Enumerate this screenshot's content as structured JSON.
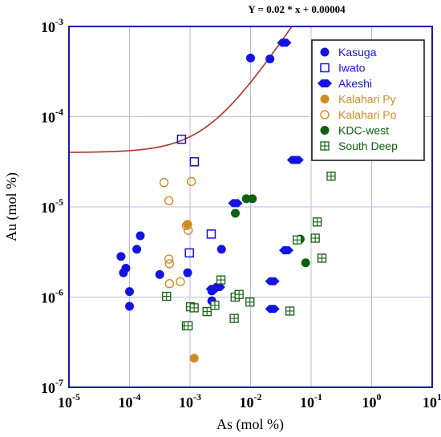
{
  "chart_data": {
    "type": "scatter",
    "equation": "Y = 0.02 * x + 0.00004",
    "xlabel": "As (mol %)",
    "ylabel": "Au (mol %)",
    "x_scale": "log",
    "y_scale": "log",
    "xlim": [
      1e-05,
      10
    ],
    "ylim": [
      1e-07,
      0.001
    ],
    "x_ticks": [
      {
        "base": "10",
        "exp": "-5"
      },
      {
        "base": "10",
        "exp": "-4"
      },
      {
        "base": "10",
        "exp": "-3"
      },
      {
        "base": "10",
        "exp": "-2"
      },
      {
        "base": "10",
        "exp": "-1"
      },
      {
        "base": "10",
        "exp": "0"
      },
      {
        "base": "10",
        "exp": "1"
      }
    ],
    "y_ticks": [
      {
        "base": "10",
        "exp": "-7"
      },
      {
        "base": "10",
        "exp": "-6"
      },
      {
        "base": "10",
        "exp": "-5"
      },
      {
        "base": "10",
        "exp": "-4"
      },
      {
        "base": "10",
        "exp": "-3"
      }
    ],
    "grid": true,
    "legend_position": "top-right",
    "line": {
      "slope": 0.02,
      "intercept": 4e-05,
      "color": "#b0302a"
    },
    "series": [
      {
        "name": "Kasuga",
        "marker": "filled-circle",
        "color": "#1414e0",
        "points": [
          [
            7.24e-05,
            2.82e-06
          ],
          [
            7.94e-05,
            1.86e-06
          ],
          [
            8.71e-05,
            2.09e-06
          ],
          [
            0.0001,
            1.15e-06
          ],
          [
            0.0001,
            7.9e-07
          ],
          [
            0.000132,
            3.39e-06
          ],
          [
            0.000151,
            4.79e-06
          ],
          [
            0.000316,
            1.78e-06
          ],
          [
            0.000912,
            1.86e-06
          ],
          [
            0.00229,
            9.1e-07
          ],
          [
            0.00229,
            1.17e-06
          ],
          [
            0.00331,
            3.39e-06
          ],
          [
            0.01,
            0.000447
          ],
          [
            0.0209,
            0.000437
          ]
        ]
      },
      {
        "name": "Iwato",
        "marker": "open-square",
        "color": "#1414e0",
        "points": [
          [
            0.000724,
            5.62e-05
          ],
          [
            0.000977,
            3.09e-06
          ],
          [
            0.00118,
            3.16e-05
          ],
          [
            0.00224,
            5e-06
          ]
        ]
      },
      {
        "name": "Akeshi",
        "marker": "filled-hexagon",
        "color": "#1414e0",
        "points": [
          [
            0.0024,
            1.23e-06
          ],
          [
            0.0029,
            1.29e-06
          ],
          [
            0.0056,
            1.1e-05
          ],
          [
            0.0229,
            1.5e-06
          ],
          [
            0.0229,
            7.4e-07
          ],
          [
            0.036,
            0.000661
          ],
          [
            0.0525,
            3.31e-05
          ],
          [
            0.0575,
            3.31e-05
          ],
          [
            0.0389,
            3.3e-06
          ]
        ]
      },
      {
        "name": "Kalahari Py",
        "marker": "filled-circle",
        "color": "#d08b20",
        "points": [
          [
            0.000912,
            6.4e-06
          ],
          [
            0.00117,
            2.1e-07
          ]
        ]
      },
      {
        "name": "Kalahari Po",
        "marker": "open-circle",
        "color": "#d08b20",
        "points": [
          [
            0.000372,
            1.86e-05
          ],
          [
            0.000447,
            1.17e-05
          ],
          [
            0.000447,
            2.64e-06
          ],
          [
            0.000457,
            2.34e-06
          ],
          [
            0.000457,
            1.41e-06
          ],
          [
            0.000692,
            1.48e-06
          ],
          [
            0.000871,
            6.2e-06
          ],
          [
            0.000933,
            5.5e-06
          ],
          [
            0.00105,
            1.91e-05
          ]
        ]
      },
      {
        "name": "KDC-west",
        "marker": "filled-circle",
        "color": "#106010",
        "points": [
          [
            0.0056,
            8.5e-06
          ],
          [
            0.0085,
            1.23e-05
          ],
          [
            0.0107,
            1.23e-05
          ],
          [
            0.0661,
            4.4e-06
          ],
          [
            0.0813,
            2.4e-06
          ]
        ]
      },
      {
        "name": "South Deep",
        "marker": "boxed-plus",
        "color": "#106010",
        "points": [
          [
            0.00041,
            1.02e-06
          ],
          [
            0.00087,
            4.8e-07
          ],
          [
            0.00093,
            4.8e-07
          ],
          [
            0.00102,
            7.8e-07
          ],
          [
            0.00117,
            7.6e-07
          ],
          [
            0.00191,
            6.9e-07
          ],
          [
            0.00257,
            8.1e-07
          ],
          [
            0.00324,
            1.55e-06
          ],
          [
            0.00537,
            5.8e-07
          ],
          [
            0.00556,
            1e-06
          ],
          [
            0.00646,
            1.07e-06
          ],
          [
            0.00977,
            8.8e-07
          ],
          [
            0.0447,
            7e-07
          ],
          [
            0.0589,
            4.3e-06
          ],
          [
            0.117,
            4.5e-06
          ],
          [
            0.126,
            6.8e-06
          ],
          [
            0.151,
            2.7e-06
          ],
          [
            0.214,
            2.19e-05
          ]
        ]
      }
    ]
  }
}
